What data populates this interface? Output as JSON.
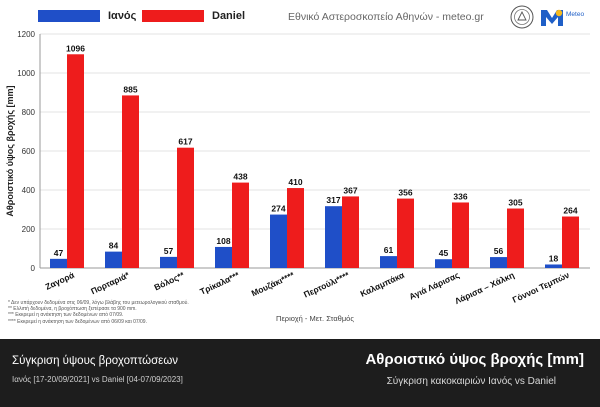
{
  "legend": {
    "series_a_label": "Ιανός",
    "series_b_label": "Daniel"
  },
  "header": {
    "source": "Εθνικό Αστεροσκοπείο Αθηνών - meteo.gr",
    "logo_text": "Meteo"
  },
  "colors": {
    "ianos": "#1f4fc8",
    "daniel": "#ee1c1c",
    "grid": "#e3e3e3",
    "band": "#1d1d1d"
  },
  "chart_data": {
    "type": "bar",
    "ylabel": "Αθροιστικό ύψος βροχής [mm]",
    "xlabel": "Περιοχή - Μετ. Σταθμός",
    "ylim": [
      0,
      1200
    ],
    "yticks": [
      0,
      200,
      400,
      600,
      800,
      1000,
      1200
    ],
    "grid": true,
    "legend_position": "top-left",
    "categories": [
      "Ζαγορά",
      "Πορταριά*",
      "Βόλος**",
      "Τρίκαλα***",
      "Μουζάκι****",
      "Περτούλι****",
      "Καλαμπάκα",
      "Αγιά Λάρισας",
      "Λάρισα – Χάλκη",
      "Γόννοι Τεμπών"
    ],
    "series": [
      {
        "name": "Ιανός",
        "values": [
          47,
          84,
          57,
          108,
          274,
          317,
          61,
          45,
          56,
          18
        ]
      },
      {
        "name": "Daniel",
        "values": [
          1096,
          885,
          617,
          438,
          410,
          367,
          356,
          336,
          305,
          264
        ]
      }
    ]
  },
  "footnotes": [
    "* Δεν υπάρχουν δεδομένα στις 06/09, λόγω βλάβης του μετεωρολογικού σταθμού.",
    "** Ελλιπή δεδομένα, η βροχόπτωση ξεπέρασε τα 900 mm.",
    "*** Εκκρεμεί η ανάκτηση των δεδομένων από 07/09.",
    "**** Εκκρεμεί η ανάκτηση των δεδομένων από 06/09 και 07/09."
  ],
  "bottom": {
    "title_left": "Σύγκριση ύψους βροχοπτώσεων",
    "subtitle_left": "Ιανός [17-20/09/2021] vs Daniel [04-07/09/2023]",
    "title_right": "Αθροιστικό ύψος βροχής [mm]",
    "subtitle_right": "Σύγκριση κακοκαιριών Ιανός vs Daniel"
  }
}
